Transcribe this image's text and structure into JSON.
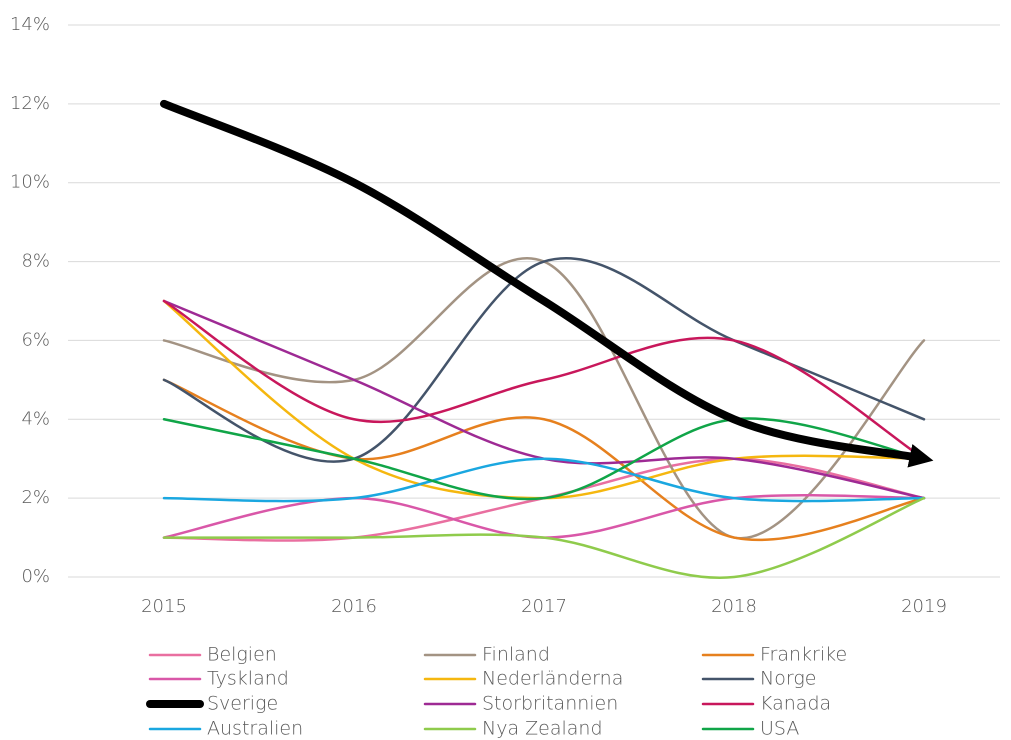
{
  "chart_data": {
    "type": "line",
    "categories": [
      "2015",
      "2016",
      "2017",
      "2018",
      "2019"
    ],
    "ylim": [
      0,
      14
    ],
    "yticks": [
      {
        "value": 0,
        "label": "0%"
      },
      {
        "value": 2,
        "label": "2%"
      },
      {
        "value": 4,
        "label": "4%"
      },
      {
        "value": 6,
        "label": "6%"
      },
      {
        "value": 8,
        "label": "8%"
      },
      {
        "value": 10,
        "label": "10%"
      },
      {
        "value": 12,
        "label": "12%"
      },
      {
        "value": 14,
        "label": "14%"
      }
    ],
    "grid": true,
    "smooth": true,
    "legend": "bottom",
    "series": [
      {
        "name": "Belgien",
        "color": "#e96fa0",
        "values": [
          1,
          1,
          2,
          3,
          2
        ]
      },
      {
        "name": "Finland",
        "color": "#a39383",
        "values": [
          6,
          5,
          8,
          1,
          6
        ]
      },
      {
        "name": "Frankrike",
        "color": "#e6801e",
        "values": [
          5,
          3,
          4,
          1,
          2
        ]
      },
      {
        "name": "Tyskland",
        "color": "#d957a8",
        "values": [
          1,
          2,
          1,
          2,
          2
        ]
      },
      {
        "name": "Nederländerna",
        "color": "#f5b70f",
        "values": [
          7,
          3,
          2,
          3,
          3
        ]
      },
      {
        "name": "Norge",
        "color": "#44546a",
        "values": [
          5,
          3,
          8,
          6,
          4
        ]
      },
      {
        "name": "Sverige",
        "color": "#000000",
        "values": [
          12,
          10,
          7,
          4,
          3
        ]
      },
      {
        "name": "Storbritannien",
        "color": "#9e2a94",
        "values": [
          7,
          5,
          3,
          3,
          2
        ]
      },
      {
        "name": "Kanada",
        "color": "#c8175b",
        "values": [
          7,
          4,
          5,
          6,
          3
        ]
      },
      {
        "name": "Australien",
        "color": "#1aa7e0",
        "values": [
          2,
          2,
          3,
          2,
          2
        ]
      },
      {
        "name": "Nya Zealand",
        "color": "#8fcb4c",
        "values": [
          1,
          1,
          1,
          0,
          2
        ]
      },
      {
        "name": "USA",
        "color": "#10a548",
        "values": [
          4,
          3,
          2,
          4,
          3
        ]
      }
    ]
  }
}
